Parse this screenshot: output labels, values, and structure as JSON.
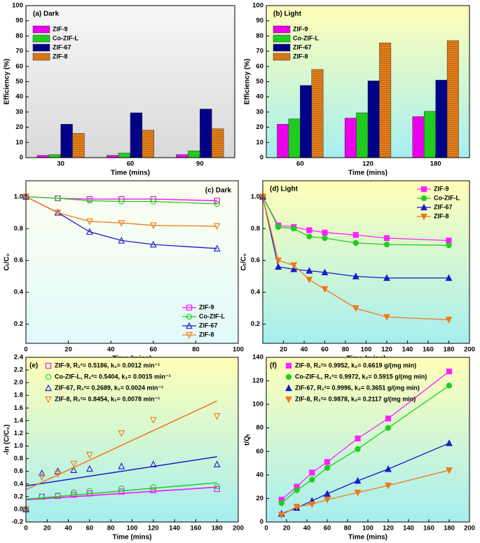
{
  "chart_data": [
    {
      "type": "bar",
      "title": "(a) Dark",
      "xlabel": "Time (mins)",
      "ylabel": "Efficiency (%)",
      "categories": [
        "30",
        "60",
        "90"
      ],
      "ylim": [
        0,
        100
      ],
      "yticks": [
        0,
        10,
        20,
        30,
        40,
        50,
        60,
        70,
        80,
        90,
        100
      ],
      "legend": "upper left",
      "background": [
        "#f7f7f7",
        "#d9d9d9"
      ],
      "series": [
        {
          "name": "ZIF-9",
          "color": "#ff00ff",
          "values": [
            1.5,
            1.5,
            2
          ]
        },
        {
          "name": "Co-ZIF-L",
          "color": "#22dd22",
          "values": [
            2,
            3,
            4.5
          ]
        },
        {
          "name": "ZIF-67",
          "color": "#000090",
          "values": [
            22,
            29.5,
            32
          ]
        },
        {
          "name": "ZIF-8",
          "color": "#e8801a",
          "values": [
            16,
            18,
            19
          ]
        }
      ]
    },
    {
      "type": "bar",
      "title": "(b) Light",
      "xlabel": "Time (mins)",
      "ylabel": "Efficiency (%)",
      "categories": [
        "60",
        "120",
        "180"
      ],
      "ylim": [
        0,
        100
      ],
      "yticks": [
        0,
        10,
        20,
        30,
        40,
        50,
        60,
        70,
        80,
        90,
        100
      ],
      "legend": "upper left",
      "background": [
        "#ffffb8",
        "#a6eef0"
      ],
      "series": [
        {
          "name": "ZIF-9",
          "color": "#ff00ff",
          "values": [
            22,
            26,
            27
          ]
        },
        {
          "name": "Co-ZIF-L",
          "color": "#22dd22",
          "values": [
            25.5,
            29.5,
            30.5
          ]
        },
        {
          "name": "ZIF-67",
          "color": "#000090",
          "values": [
            47.5,
            50.5,
            51
          ]
        },
        {
          "name": "ZIF-8",
          "color": "#e8801a",
          "values": [
            58,
            75.5,
            77
          ]
        }
      ]
    },
    {
      "type": "line",
      "title": "(c) Dark",
      "xlabel": "Time (mins)",
      "ylabel": "Cₜ/C₀",
      "x": [
        0,
        15,
        30,
        45,
        60,
        90
      ],
      "xlim": [
        0,
        100
      ],
      "xticks": [
        0,
        20,
        40,
        60,
        80,
        100
      ],
      "ylim": [
        0.08,
        1.1
      ],
      "yticks": [
        0.2,
        0.4,
        0.6,
        0.8,
        {
          "value": 1,
          "label": "1.0"
        }
      ],
      "legend": "lower right",
      "filled": false,
      "background": [
        "#fffff0",
        "#e0fafa"
      ],
      "series": [
        {
          "name": "ZIF-9",
          "color": "#ff00ff",
          "marker": "square",
          "values": [
            1.0,
            0.99,
            0.985,
            0.985,
            0.985,
            0.975
          ]
        },
        {
          "name": "Co-ZIF-L",
          "color": "#22cc22",
          "marker": "circle",
          "values": [
            1.0,
            0.99,
            0.975,
            0.97,
            0.97,
            0.955
          ]
        },
        {
          "name": "ZIF-67",
          "color": "#1a1acc",
          "marker": "triangle",
          "values": [
            1.0,
            0.9,
            0.78,
            0.725,
            0.7,
            0.675
          ]
        },
        {
          "name": "ZIF-8",
          "color": "#f07818",
          "marker": "triangle-down",
          "values": [
            1.0,
            0.9,
            0.845,
            0.835,
            0.82,
            0.815
          ]
        }
      ]
    },
    {
      "type": "line",
      "title": "(d) Light",
      "xlabel": "Time (mins)",
      "ylabel": "Cₜ/C₀",
      "x": [
        0,
        15,
        30,
        45,
        60,
        90,
        120,
        180
      ],
      "xlim": [
        0,
        200
      ],
      "xticks": [
        20,
        40,
        60,
        80,
        100,
        120,
        140,
        160,
        180,
        200
      ],
      "ylim": [
        0.08,
        1.1
      ],
      "yticks": [
        0.2,
        0.4,
        0.6,
        0.8,
        {
          "value": 1,
          "label": "1.0"
        }
      ],
      "legend": "upper right",
      "filled": true,
      "background": [
        "#ffffb8",
        "#a6eef0"
      ],
      "series": [
        {
          "name": "ZIF-9",
          "color": "#ff22ff",
          "marker": "square",
          "values": [
            1.0,
            0.82,
            0.81,
            0.79,
            0.775,
            0.76,
            0.74,
            0.725
          ]
        },
        {
          "name": "Co-ZIF-L",
          "color": "#22cc22",
          "marker": "circle",
          "values": [
            1.0,
            0.81,
            0.8,
            0.75,
            0.74,
            0.71,
            0.7,
            0.695
          ]
        },
        {
          "name": "ZIF-67",
          "color": "#1a1acc",
          "marker": "triangle",
          "values": [
            1.0,
            0.56,
            0.545,
            0.535,
            0.525,
            0.5,
            0.49,
            0.49
          ]
        },
        {
          "name": "ZIF-8",
          "color": "#f07818",
          "marker": "triangle-down",
          "values": [
            1.0,
            0.6,
            0.57,
            0.48,
            0.42,
            0.3,
            0.245,
            0.228
          ]
        }
      ]
    },
    {
      "type": "scatter",
      "title": "(e)",
      "xlabel": "Time (mins)",
      "ylabel": "-ln (C/C₀)",
      "x": [
        0,
        15,
        30,
        45,
        60,
        90,
        120,
        180
      ],
      "xlim": [
        0,
        200
      ],
      "xticks": [
        0,
        20,
        40,
        60,
        80,
        100,
        120,
        140,
        160,
        180,
        200
      ],
      "ylim": [
        -0.2,
        2.4
      ],
      "yticks": [
        -0.2,
        {
          "value": 0,
          "label": "0.0"
        },
        0.2,
        0.4,
        0.6,
        0.8,
        {
          "value": 1,
          "label": "1.0"
        },
        1.2,
        1.4,
        1.6,
        1.8,
        {
          "value": 2,
          "label": "2.0"
        },
        2.2,
        2.4
      ],
      "legend": "upper left",
      "filled": false,
      "background": [
        "#ffffb8",
        "#a6eef0"
      ],
      "series": [
        {
          "name": "ZIF-9, R₁²= 0.5186, k₁= 0.0012 min⁻¹",
          "color": "#ff00ff",
          "marker": "square",
          "values": [
            0,
            0.2,
            0.21,
            0.23,
            0.25,
            0.28,
            0.3,
            0.32
          ],
          "fit": {
            "x": [
              0,
              180
            ],
            "values": [
              0.15,
              0.35
            ]
          }
        },
        {
          "name": "Co-ZIF-L, R₁²= 0.5404, k₁= 0.0015 min⁻¹",
          "color": "#22cc22",
          "marker": "circle",
          "values": [
            0,
            0.2,
            0.22,
            0.27,
            0.29,
            0.33,
            0.35,
            0.36
          ],
          "fit": {
            "x": [
              0,
              180
            ],
            "values": [
              0.16,
              0.42
            ]
          }
        },
        {
          "name": "ZIF-67, R₁²= 0.2689, k₁= 0.0024 min⁻¹",
          "color": "#1a1acc",
          "marker": "triangle",
          "values": [
            0,
            0.57,
            0.6,
            0.62,
            0.64,
            0.68,
            0.71,
            0.71
          ],
          "fit": {
            "x": [
              0,
              180
            ],
            "values": [
              0.37,
              0.83
            ]
          }
        },
        {
          "name": "ZIF-8, R₁²= 0.8454, k₁= 0.0078 min⁻¹",
          "color": "#f07818",
          "marker": "triangle-down",
          "values": [
            0,
            0.51,
            0.56,
            0.72,
            0.86,
            1.2,
            1.41,
            1.47
          ],
          "fit": {
            "x": [
              0,
              180
            ],
            "values": [
              0.31,
              1.71
            ]
          }
        }
      ]
    },
    {
      "type": "line",
      "title": "(f)",
      "xlabel": "Time (mins)",
      "ylabel": "t/Qₜ",
      "x": [
        15,
        30,
        45,
        60,
        90,
        120,
        180
      ],
      "xlim": [
        0,
        200
      ],
      "xticks": [
        0,
        20,
        40,
        60,
        80,
        100,
        120,
        140,
        160,
        180,
        200
      ],
      "ylim": [
        0,
        140
      ],
      "yticks": [
        0,
        20,
        40,
        60,
        80,
        100,
        120,
        140
      ],
      "legend": "upper left",
      "filled": true,
      "background": [
        "#ffffb8",
        "#a6eef0"
      ],
      "series": [
        {
          "name": "ZIF-9, R₂²= 0.9952, k₂= 0.6619 g/(mg min)",
          "color": "#ff22ff",
          "marker": "square",
          "values": [
            19,
            30,
            42,
            51,
            71,
            88,
            128
          ]
        },
        {
          "name": "Co-ZIF-L, R₁²= 0.9972, k₂= 0.5915 g/(mg min)",
          "color": "#22cc22",
          "marker": "circle",
          "values": [
            16,
            27,
            36,
            46,
            62,
            80,
            116
          ]
        },
        {
          "name": "ZIF-67, R₁²= 0.9996, k₂= 0.3651 g/(mg min)",
          "color": "#1a1acc",
          "marker": "triangle",
          "values": [
            7,
            12,
            18,
            24,
            35,
            45,
            67
          ]
        },
        {
          "name": "ZIF-8, R₁²= 0.9878, k₂= 0.2117 g/(mg min)",
          "color": "#f07818",
          "marker": "triangle-down",
          "values": [
            6,
            13,
            15,
            19,
            25,
            31,
            44
          ]
        }
      ]
    }
  ]
}
